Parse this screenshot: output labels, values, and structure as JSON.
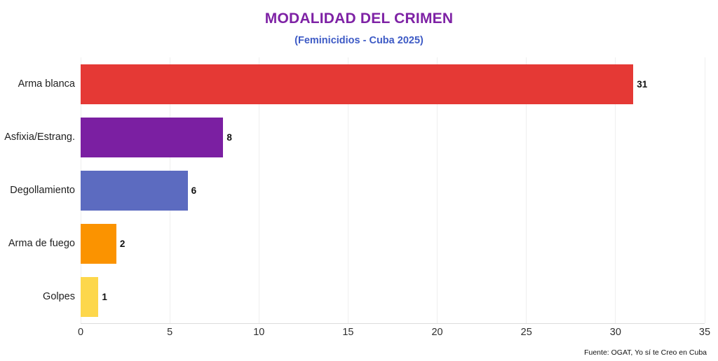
{
  "header": {
    "title": "MODALIDAD DEL CRIMEN",
    "subtitle": "(Feminicidios - Cuba 2025)",
    "title_color": "#7E22A5",
    "subtitle_color": "#3D5AC5"
  },
  "footer": {
    "source": "Fuente: OGAT, Yo sí te Creo en Cuba"
  },
  "chart_data": {
    "type": "bar",
    "orientation": "horizontal",
    "title": "MODALIDAD DEL CRIMEN",
    "subtitle": "(Feminicidios - Cuba 2025)",
    "categories": [
      "Arma blanca",
      "Asfixia/Estrang.",
      "Degollamiento",
      "Arma de fuego",
      "Golpes"
    ],
    "values": [
      31,
      8,
      6,
      2,
      1
    ],
    "value_labels": [
      "31",
      "8",
      "6",
      "2",
      "1"
    ],
    "bar_colors": [
      "#E53935",
      "#7B1FA2",
      "#5C6BC0",
      "#FB9300",
      "#FDD74B"
    ],
    "xlabel": "",
    "ylabel": "",
    "xlim": [
      0,
      35
    ],
    "xticks": [
      0,
      5,
      10,
      15,
      20,
      25,
      30,
      35
    ],
    "grid": true,
    "legend": false,
    "source": "Fuente: OGAT, Yo sí te Creo en Cuba"
  }
}
